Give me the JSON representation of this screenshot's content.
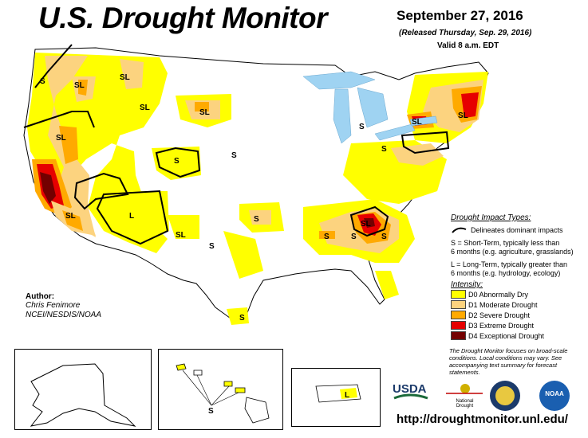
{
  "header": {
    "title": "U.S. Drought Monitor",
    "date": "September 27, 2016",
    "released": "(Released Thursday, Sep. 29, 2016)",
    "valid": "Valid 8 a.m. EDT"
  },
  "impact_types": {
    "title": "Drought Impact Types:",
    "delineates": "Delineates dominant impacts",
    "short_term_1": "S = Short-Term, typically less than",
    "short_term_2": "6 months (e.g. agriculture, grasslands)",
    "long_term_1": "L = Long-Term, typically greater than",
    "long_term_2": "6 months (e.g. hydrology, ecology)"
  },
  "intensity": {
    "title": "Intensity:",
    "levels": [
      {
        "label": "D0 Abnormally Dry",
        "color": "#ffff00"
      },
      {
        "label": "D1 Moderate Drought",
        "color": "#fcd37f"
      },
      {
        "label": "D2 Severe Drought",
        "color": "#ffaa00"
      },
      {
        "label": "D3 Extreme Drought",
        "color": "#e60000"
      },
      {
        "label": "D4 Exceptional Drought",
        "color": "#730000"
      }
    ]
  },
  "author": {
    "label": "Author:",
    "name": "Chris Fenimore",
    "org": "NCEI/NESDIS/NOAA"
  },
  "note": "The Drought Monitor focuses on broad-scale conditions. Local conditions may vary. See accompanying text summary for forecast statements.",
  "url": "http://droughtmonitor.unl.edu/",
  "logos": {
    "usda": "USDA",
    "ndmc_1": "National",
    "ndmc_2": "Drought",
    "ndmc_3": "Mitigation",
    "ndmc_4": "Center",
    "noaa": "NOAA"
  },
  "map_labels": {
    "s": "S",
    "l": "L",
    "sl": "SL"
  },
  "colors": {
    "water": "#9fd3f2",
    "border": "#000000",
    "state_line": "#b8b8b8"
  }
}
